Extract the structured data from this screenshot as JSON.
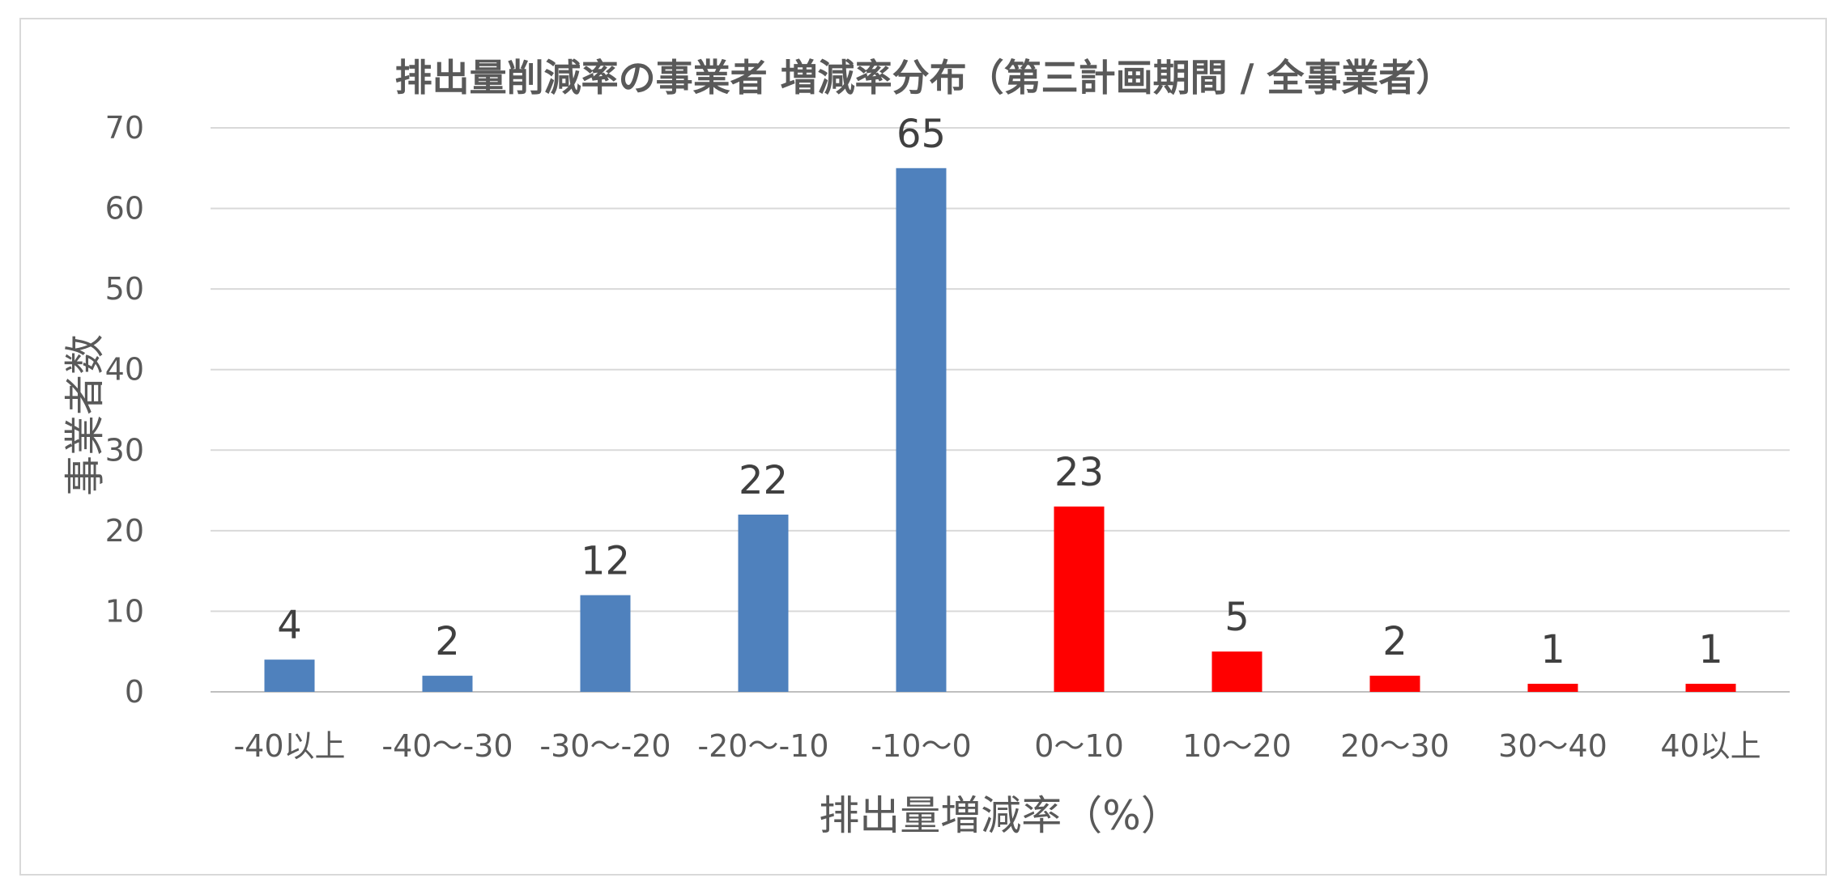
{
  "chart_data": {
    "type": "bar",
    "title": "排出量削減率の事業者 増減率分布（第三計画期間 / 全事業者）",
    "xlabel": "排出量増減率（%）",
    "ylabel": "事業者数",
    "categories": [
      "-40以上",
      "-40～-30",
      "-30～-20",
      "-20～-10",
      "-10～0",
      "0～10",
      "10～20",
      "20～30",
      "30～40",
      "40以上"
    ],
    "values": [
      4,
      2,
      12,
      22,
      65,
      23,
      5,
      2,
      1,
      1
    ],
    "bar_colors": [
      "#4F81BD",
      "#4F81BD",
      "#4F81BD",
      "#4F81BD",
      "#4F81BD",
      "#FF0000",
      "#FF0000",
      "#FF0000",
      "#FF0000",
      "#FF0000"
    ],
    "ylim": [
      0,
      70
    ],
    "yticks": [
      0,
      10,
      20,
      30,
      40,
      50,
      60,
      70
    ],
    "grid": true,
    "data_labels": true
  }
}
